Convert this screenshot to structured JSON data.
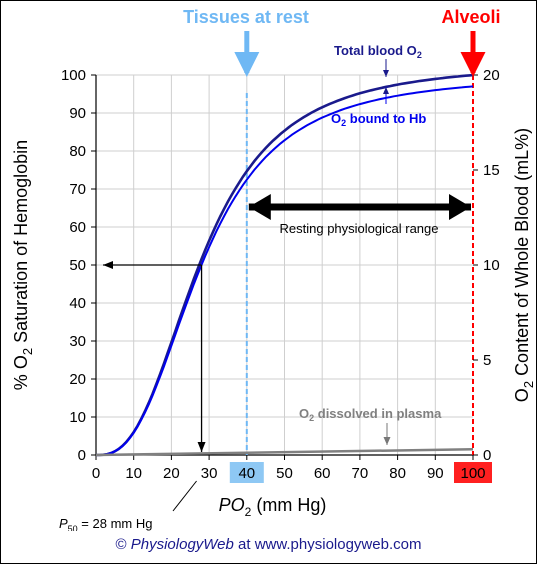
{
  "chart_data": {
    "type": "line",
    "xlabel_prefix": "PO",
    "xlabel_sub": "2",
    "xlabel_suffix": " (mm Hg)",
    "ylabel_left_prefix": "% O",
    "ylabel_left_sub": "2",
    "ylabel_left_suffix": " Saturation of Hemoglobin",
    "ylabel_right_prefix": "O",
    "ylabel_right_sub": "2",
    "ylabel_right_suffix": " Content of Whole Blood (mL%)",
    "xlim": [
      0,
      100
    ],
    "ylim_left": [
      0,
      100
    ],
    "ylim_right": [
      0,
      20
    ],
    "x_ticks": [
      0,
      10,
      20,
      30,
      40,
      50,
      60,
      70,
      80,
      90,
      100
    ],
    "y_ticks_left": [
      0,
      10,
      20,
      30,
      40,
      50,
      60,
      70,
      80,
      90,
      100
    ],
    "y_ticks_right": [
      0,
      5,
      10,
      15,
      20
    ],
    "grid": true,
    "p50": 28,
    "hill_n": 2.7,
    "series": [
      {
        "name_prefix": "Total blood O",
        "name_sub": "2",
        "color": "#1a1a8c",
        "x": [
          0,
          10,
          20,
          28,
          30,
          40,
          50,
          60,
          70,
          80,
          90,
          100
        ],
        "y": [
          0,
          3.4,
          29,
          51,
          55,
          75,
          86,
          91.5,
          94.5,
          96.3,
          97.5,
          98.5
        ]
      },
      {
        "name_prefix": "O",
        "name_sub": "2",
        "name_suffix": " bound to Hb",
        "color": "#0000ee",
        "x": [
          0,
          10,
          20,
          28,
          30,
          40,
          50,
          60,
          70,
          80,
          90,
          100
        ],
        "y": [
          0,
          3.3,
          28.5,
          50,
          54,
          74,
          84.7,
          90,
          93,
          94.8,
          96,
          97
        ]
      },
      {
        "name_prefix": "O",
        "name_sub": "2",
        "name_suffix": " dissolved in plasma",
        "color": "#808080",
        "x": [
          0,
          100
        ],
        "y_right": [
          0,
          0.3
        ]
      }
    ],
    "annotations": {
      "tissues": "Tissues at rest",
      "alveoli": "Alveoli",
      "range": "Resting physiological range",
      "p50_prefix": "P",
      "p50_sub": "50",
      "p50_suffix": " = 28 mm Hg",
      "highlight_40": "40",
      "highlight_100": "100"
    },
    "colors": {
      "tissues": "#6fb8f4",
      "highlight_40_bg": "#8ec8f4",
      "alveoli": "#ff0000",
      "highlight_100_bg": "#ff2020"
    }
  },
  "credit": {
    "prefix": "© ",
    "brand": "PhysiologyWeb",
    "suffix": " at www.physiologyweb.com"
  }
}
